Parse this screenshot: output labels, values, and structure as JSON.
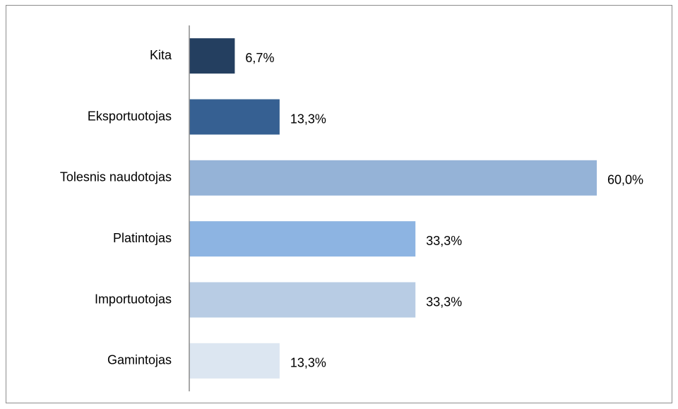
{
  "chart_data": {
    "type": "barh",
    "categories": [
      "Kita",
      "Eksportuotojas",
      "Tolesnis naudotojas",
      "Platintojas",
      "Importuotojas",
      "Gamintojas"
    ],
    "series": [
      {
        "values": [
          6.7,
          13.3,
          60.0,
          33.3,
          33.3,
          13.3
        ],
        "value_labels": [
          "6,7%",
          "13,3%",
          "60,0%",
          "33,3%",
          "33,3%",
          "13,3%"
        ],
        "colors": [
          "#243f60",
          "#366092",
          "#95b3d7",
          "#8db4e2",
          "#b8cce4",
          "#dce6f1"
        ]
      }
    ]
  }
}
